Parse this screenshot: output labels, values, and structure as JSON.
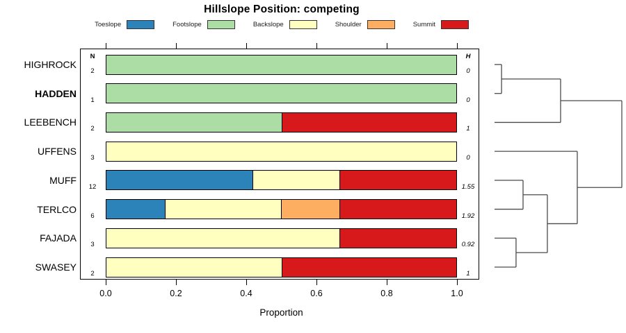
{
  "title": "Hillslope Position: competing",
  "xlabel": "Proportion",
  "col_headers": {
    "n": "N",
    "h": "H"
  },
  "legend": [
    {
      "label": "Toeslope",
      "color": "#2B83BA"
    },
    {
      "label": "Footslope",
      "color": "#ABDDA4"
    },
    {
      "label": "Backslope",
      "color": "#FFFFBF"
    },
    {
      "label": "Shoulder",
      "color": "#FDAE61"
    },
    {
      "label": "Summit",
      "color": "#D7191C"
    }
  ],
  "x_ticks": [
    "0.0",
    "0.2",
    "0.4",
    "0.6",
    "0.8",
    "1.0"
  ],
  "rows": [
    {
      "label": "HIGHROCK",
      "bold": false,
      "n": "2",
      "h": "0",
      "segments": [
        {
          "category": "Footslope",
          "value": 1.0
        }
      ]
    },
    {
      "label": "HADDEN",
      "bold": true,
      "n": "1",
      "h": "0",
      "segments": [
        {
          "category": "Footslope",
          "value": 1.0
        }
      ]
    },
    {
      "label": "LEEBENCH",
      "bold": false,
      "n": "2",
      "h": "1",
      "segments": [
        {
          "category": "Footslope",
          "value": 0.5
        },
        {
          "category": "Summit",
          "value": 0.5
        }
      ]
    },
    {
      "label": "UFFENS",
      "bold": false,
      "n": "3",
      "h": "0",
      "segments": [
        {
          "category": "Backslope",
          "value": 1.0
        }
      ]
    },
    {
      "label": "MUFF",
      "bold": false,
      "n": "12",
      "h": "1.55",
      "segments": [
        {
          "category": "Toeslope",
          "value": 0.4167
        },
        {
          "category": "Backslope",
          "value": 0.25
        },
        {
          "category": "Summit",
          "value": 0.3333
        }
      ]
    },
    {
      "label": "TERLCO",
      "bold": false,
      "n": "6",
      "h": "1.92",
      "segments": [
        {
          "category": "Toeslope",
          "value": 0.1667
        },
        {
          "category": "Backslope",
          "value": 0.3333
        },
        {
          "category": "Shoulder",
          "value": 0.1667
        },
        {
          "category": "Summit",
          "value": 0.3333
        }
      ]
    },
    {
      "label": "FAJADA",
      "bold": false,
      "n": "3",
      "h": "0.92",
      "segments": [
        {
          "category": "Backslope",
          "value": 0.6667
        },
        {
          "category": "Summit",
          "value": 0.3333
        }
      ]
    },
    {
      "label": "SWASEY",
      "bold": false,
      "n": "2",
      "h": "1",
      "segments": [
        {
          "category": "Backslope",
          "value": 0.5
        },
        {
          "category": "Summit",
          "value": 0.5
        }
      ]
    }
  ],
  "dendrogram": {
    "tree": {
      "h": 1.0,
      "children": [
        {
          "h": 0.519,
          "children": [
            {
              "h": 0.055,
              "children": [
                {
                  "leaf": 0
                },
                {
                  "leaf": 1
                }
              ]
            },
            {
              "leaf": 2
            }
          ]
        },
        {
          "h": 0.65,
          "children": [
            {
              "leaf": 3
            },
            {
              "h": 0.415,
              "children": [
                {
                  "h": 0.224,
                  "children": [
                    {
                      "leaf": 4
                    },
                    {
                      "leaf": 5
                    }
                  ]
                },
                {
                  "h": 0.169,
                  "children": [
                    {
                      "leaf": 6
                    },
                    {
                      "leaf": 7
                    }
                  ]
                }
              ]
            }
          ]
        }
      ]
    }
  },
  "chart_data": {
    "type": "bar",
    "orientation": "horizontal-stacked",
    "title": "Hillslope Position: competing",
    "xlabel": "Proportion",
    "xlim": [
      0,
      1
    ],
    "xticks": [
      0.0,
      0.2,
      0.4,
      0.6,
      0.8,
      1.0
    ],
    "grid": false,
    "legend_position": "top",
    "categories": [
      "HIGHROCK",
      "HADDEN",
      "LEEBENCH",
      "UFFENS",
      "MUFF",
      "TERLCO",
      "FAJADA",
      "SWASEY"
    ],
    "N": [
      2,
      1,
      2,
      3,
      12,
      6,
      3,
      2
    ],
    "H_shannon": [
      0,
      0,
      1,
      0,
      1.55,
      1.92,
      0.92,
      1
    ],
    "series": [
      {
        "name": "Toeslope",
        "color": "#2B83BA",
        "values": [
          0,
          0,
          0,
          0,
          0.4167,
          0.1667,
          0,
          0
        ]
      },
      {
        "name": "Footslope",
        "color": "#ABDDA4",
        "values": [
          1,
          1,
          0.5,
          0,
          0,
          0,
          0,
          0
        ]
      },
      {
        "name": "Backslope",
        "color": "#FFFFBF",
        "values": [
          0,
          0,
          0,
          1,
          0.25,
          0.3333,
          0.6667,
          0.5
        ]
      },
      {
        "name": "Shoulder",
        "color": "#FDAE61",
        "values": [
          0,
          0,
          0,
          0,
          0,
          0.1667,
          0,
          0
        ]
      },
      {
        "name": "Summit",
        "color": "#D7191C",
        "values": [
          0,
          0,
          0.5,
          0,
          0.3333,
          0.3333,
          0.3333,
          0.5
        ]
      }
    ],
    "right_margin_plot": {
      "type": "dendrogram",
      "description": "hierarchical clustering of rows, leaves aligned to bars",
      "merge_order": [
        [
          "HIGHROCK",
          "HADDEN"
        ],
        [
          [
            "HIGHROCK",
            "HADDEN"
          ],
          "LEEBENCH"
        ],
        [
          "MUFF",
          "TERLCO"
        ],
        [
          "FAJADA",
          "SWASEY"
        ],
        [
          [
            "MUFF",
            "TERLCO"
          ],
          [
            "FAJADA",
            "SWASEY"
          ]
        ],
        [
          "UFFENS",
          [
            [
              "MUFF",
              "TERLCO"
            ],
            [
              "FAJADA",
              "SWASEY"
            ]
          ]
        ],
        [
          "top-cluster",
          "bottom-cluster"
        ]
      ]
    }
  }
}
